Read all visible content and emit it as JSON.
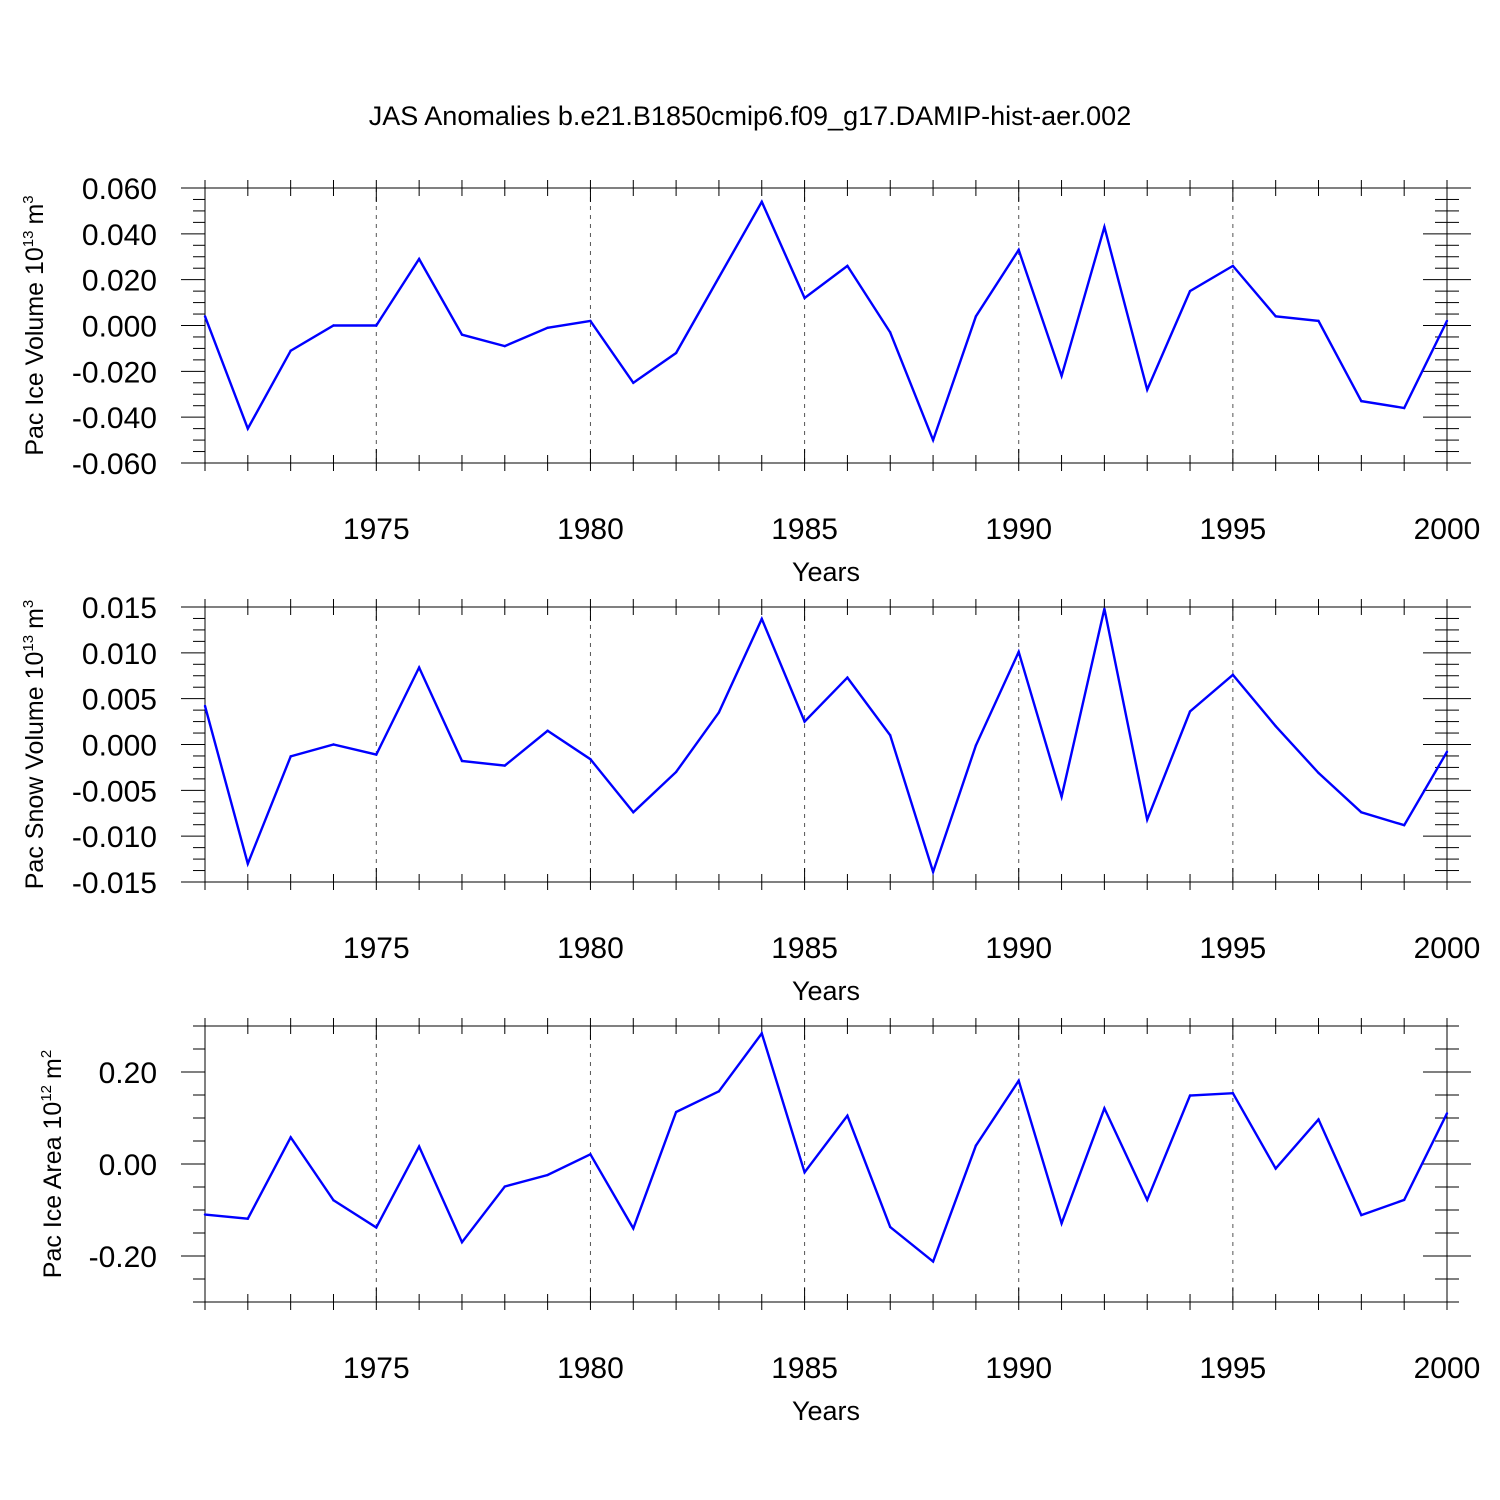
{
  "figure_title": "JAS Anomalies b.e21.B1850cmip6.f09_g17.DAMIP-hist-aer.002",
  "colors": {
    "line": "#0000ff",
    "axes": "#000000",
    "grid": "#555555"
  },
  "chart_data": [
    {
      "type": "line",
      "xlabel": "Years",
      "ylabel": {
        "text": "Pac Ice Volume 10",
        "exponent": "13",
        "unit": "m",
        "unit_exponent": "3"
      },
      "xlim": [
        1971,
        2000
      ],
      "ylim": [
        -0.06,
        0.06
      ],
      "x_ticks": [
        1975,
        1980,
        1985,
        1990,
        1995,
        2000
      ],
      "x_tick_labels": [
        "1975",
        "1980",
        "1985",
        "1990",
        "1995",
        "2000"
      ],
      "y_ticks": [
        -0.06,
        -0.04,
        -0.02,
        0.0,
        0.02,
        0.04,
        0.06
      ],
      "y_tick_labels": [
        "-0.060",
        "-0.040",
        "-0.020",
        "0.000",
        "0.020",
        "0.040",
        "0.060"
      ],
      "grid": "x-dashed",
      "x": [
        1971,
        1972,
        1973,
        1974,
        1975,
        1976,
        1977,
        1978,
        1979,
        1980,
        1981,
        1982,
        1983,
        1984,
        1985,
        1986,
        1987,
        1988,
        1989,
        1990,
        1991,
        1992,
        1993,
        1994,
        1995,
        1996,
        1997,
        1998,
        1999,
        2000
      ],
      "values": [
        0.004,
        -0.045,
        -0.011,
        0.0,
        0.0,
        0.029,
        -0.004,
        -0.009,
        -0.001,
        0.002,
        -0.025,
        -0.012,
        0.021,
        0.054,
        0.012,
        0.026,
        -0.003,
        -0.05,
        0.004,
        0.033,
        -0.022,
        0.043,
        -0.028,
        0.015,
        0.026,
        0.004,
        0.002,
        -0.033,
        -0.036,
        0.002
      ]
    },
    {
      "type": "line",
      "xlabel": "Years",
      "ylabel": {
        "text": "Pac Snow Volume 10",
        "exponent": "13",
        "unit": "m",
        "unit_exponent": "3"
      },
      "xlim": [
        1971,
        2000
      ],
      "ylim": [
        -0.015,
        0.015
      ],
      "x_ticks": [
        1975,
        1980,
        1985,
        1990,
        1995,
        2000
      ],
      "x_tick_labels": [
        "1975",
        "1980",
        "1985",
        "1990",
        "1995",
        "2000"
      ],
      "y_ticks": [
        -0.015,
        -0.01,
        -0.005,
        0.0,
        0.005,
        0.01,
        0.015
      ],
      "y_tick_labels": [
        "-0.015",
        "-0.010",
        "-0.005",
        "0.000",
        "0.005",
        "0.010",
        "0.015"
      ],
      "grid": "x-dashed",
      "x": [
        1971,
        1972,
        1973,
        1974,
        1975,
        1976,
        1977,
        1978,
        1979,
        1980,
        1981,
        1982,
        1983,
        1984,
        1985,
        1986,
        1987,
        1988,
        1989,
        1990,
        1991,
        1992,
        1993,
        1994,
        1995,
        1996,
        1997,
        1998,
        1999,
        2000
      ],
      "values": [
        0.0042,
        -0.013,
        -0.0013,
        0.0,
        -0.0011,
        0.0084,
        -0.0018,
        -0.0023,
        0.0015,
        -0.0016,
        -0.0074,
        -0.003,
        0.0035,
        0.0137,
        0.0025,
        0.0073,
        0.001,
        -0.0139,
        -0.0001,
        0.0101,
        -0.0057,
        0.0148,
        -0.0082,
        0.0036,
        0.0076,
        0.002,
        -0.0031,
        -0.0074,
        -0.0088,
        -0.0008
      ]
    },
    {
      "type": "line",
      "xlabel": "Years",
      "ylabel": {
        "text": "Pac Ice Area 10",
        "exponent": "12",
        "unit": "m",
        "unit_exponent": "2"
      },
      "xlim": [
        1971,
        2000
      ],
      "ylim": [
        -0.3,
        0.3
      ],
      "x_ticks": [
        1975,
        1980,
        1985,
        1990,
        1995,
        2000
      ],
      "x_tick_labels": [
        "1975",
        "1980",
        "1985",
        "1990",
        "1995",
        "2000"
      ],
      "y_ticks": [
        -0.2,
        0.0,
        0.2
      ],
      "y_tick_labels": [
        "-0.20",
        "0.00",
        "0.20"
      ],
      "y_minor_step": 0.05,
      "grid": "x-dashed",
      "x": [
        1971,
        1972,
        1973,
        1974,
        1975,
        1976,
        1977,
        1978,
        1979,
        1980,
        1981,
        1982,
        1983,
        1984,
        1985,
        1986,
        1987,
        1988,
        1989,
        1990,
        1991,
        1992,
        1993,
        1994,
        1995,
        1996,
        1997,
        1998,
        1999,
        2000
      ],
      "values": [
        -0.11,
        -0.119,
        0.058,
        -0.079,
        -0.138,
        0.038,
        -0.17,
        -0.049,
        -0.024,
        0.021,
        -0.14,
        0.113,
        0.158,
        0.284,
        -0.018,
        0.105,
        -0.137,
        -0.212,
        0.04,
        0.181,
        -0.129,
        0.121,
        -0.078,
        0.149,
        0.154,
        -0.01,
        0.097,
        -0.111,
        -0.078,
        0.11
      ]
    }
  ]
}
